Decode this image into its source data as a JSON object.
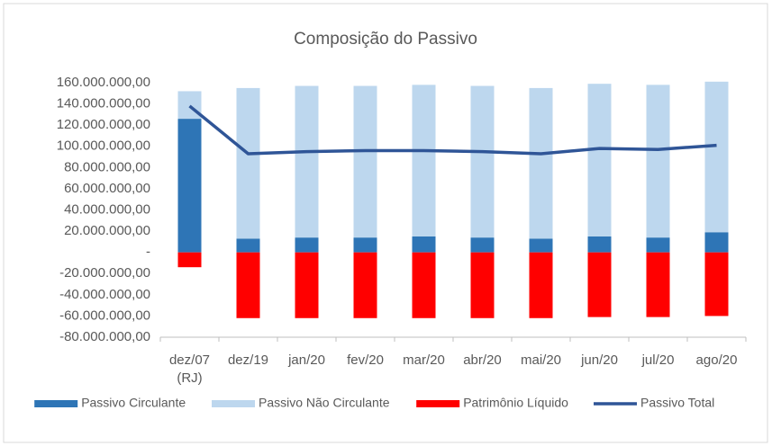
{
  "chart_data": {
    "type": "bar",
    "stacked": true,
    "title": "Composição do Passivo",
    "categories": [
      "dez/07 (RJ)",
      "dez/19",
      "jan/20",
      "fev/20",
      "mar/20",
      "abr/20",
      "mai/20",
      "jun/20",
      "jul/20",
      "ago/20"
    ],
    "series": [
      {
        "name": "Passivo Circulante",
        "type": "bar",
        "color": "#2e75b6",
        "values": [
          126000000,
          13000000,
          14000000,
          14000000,
          15000000,
          14000000,
          13000000,
          15000000,
          14000000,
          19000000
        ]
      },
      {
        "name": "Passivo Não Circulante",
        "type": "bar",
        "color": "#bdd7ee",
        "values": [
          26000000,
          142000000,
          143000000,
          143000000,
          143000000,
          143000000,
          142000000,
          144000000,
          144000000,
          142000000
        ]
      },
      {
        "name": "Patrimônio Líquido",
        "type": "bar",
        "color": "#ff0000",
        "values": [
          -14000000,
          -62000000,
          -62000000,
          -62000000,
          -62000000,
          -62000000,
          -62000000,
          -61000000,
          -61000000,
          -60000000
        ]
      },
      {
        "name": "Passivo Total",
        "type": "line",
        "color": "#2f5597",
        "values": [
          138000000,
          93000000,
          95000000,
          96000000,
          96000000,
          95000000,
          93000000,
          98000000,
          97000000,
          101000000
        ]
      }
    ],
    "ylim": [
      -80000000,
      160000000
    ],
    "yticks": [
      {
        "value": -80000000,
        "label": "-80.000.000,00"
      },
      {
        "value": -60000000,
        "label": "-60.000.000,00"
      },
      {
        "value": -40000000,
        "label": "-40.000.000,00"
      },
      {
        "value": -20000000,
        "label": "-20.000.000,00"
      },
      {
        "value": 0,
        "label": "-"
      },
      {
        "value": 20000000,
        "label": "20.000.000,00"
      },
      {
        "value": 40000000,
        "label": "40.000.000,00"
      },
      {
        "value": 60000000,
        "label": "60.000.000,00"
      },
      {
        "value": 80000000,
        "label": "80.000.000,00"
      },
      {
        "value": 100000000,
        "label": "100.000.000,00"
      },
      {
        "value": 120000000,
        "label": "120.000.000,00"
      },
      {
        "value": 140000000,
        "label": "140.000.000,00"
      },
      {
        "value": 160000000,
        "label": "160.000.000,00"
      }
    ],
    "grid": false,
    "legend": "bottom"
  }
}
